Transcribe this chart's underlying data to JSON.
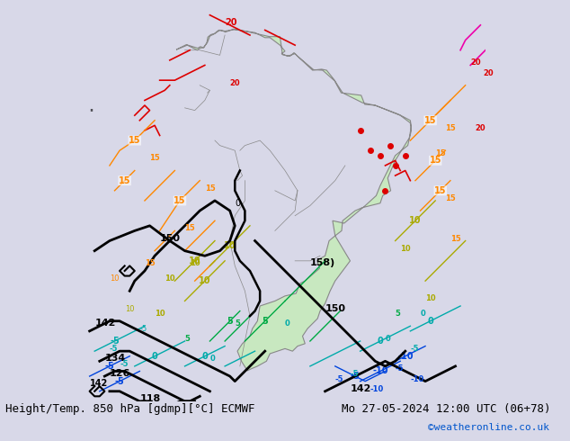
{
  "title_left": "Height/Temp. 850 hPa [gdmp][°C] ECMWF",
  "title_right": "Mo 27-05-2024 12:00 UTC (06+78)",
  "credit": "©weatheronline.co.uk",
  "bg_color": "#d8d8e8",
  "land_color": "#c8e8c0",
  "ocean_color": "#dce0ec",
  "font_size_title": 9,
  "font_size_credit": 8,
  "figsize": [
    6.34,
    4.9
  ],
  "dpi": 100
}
